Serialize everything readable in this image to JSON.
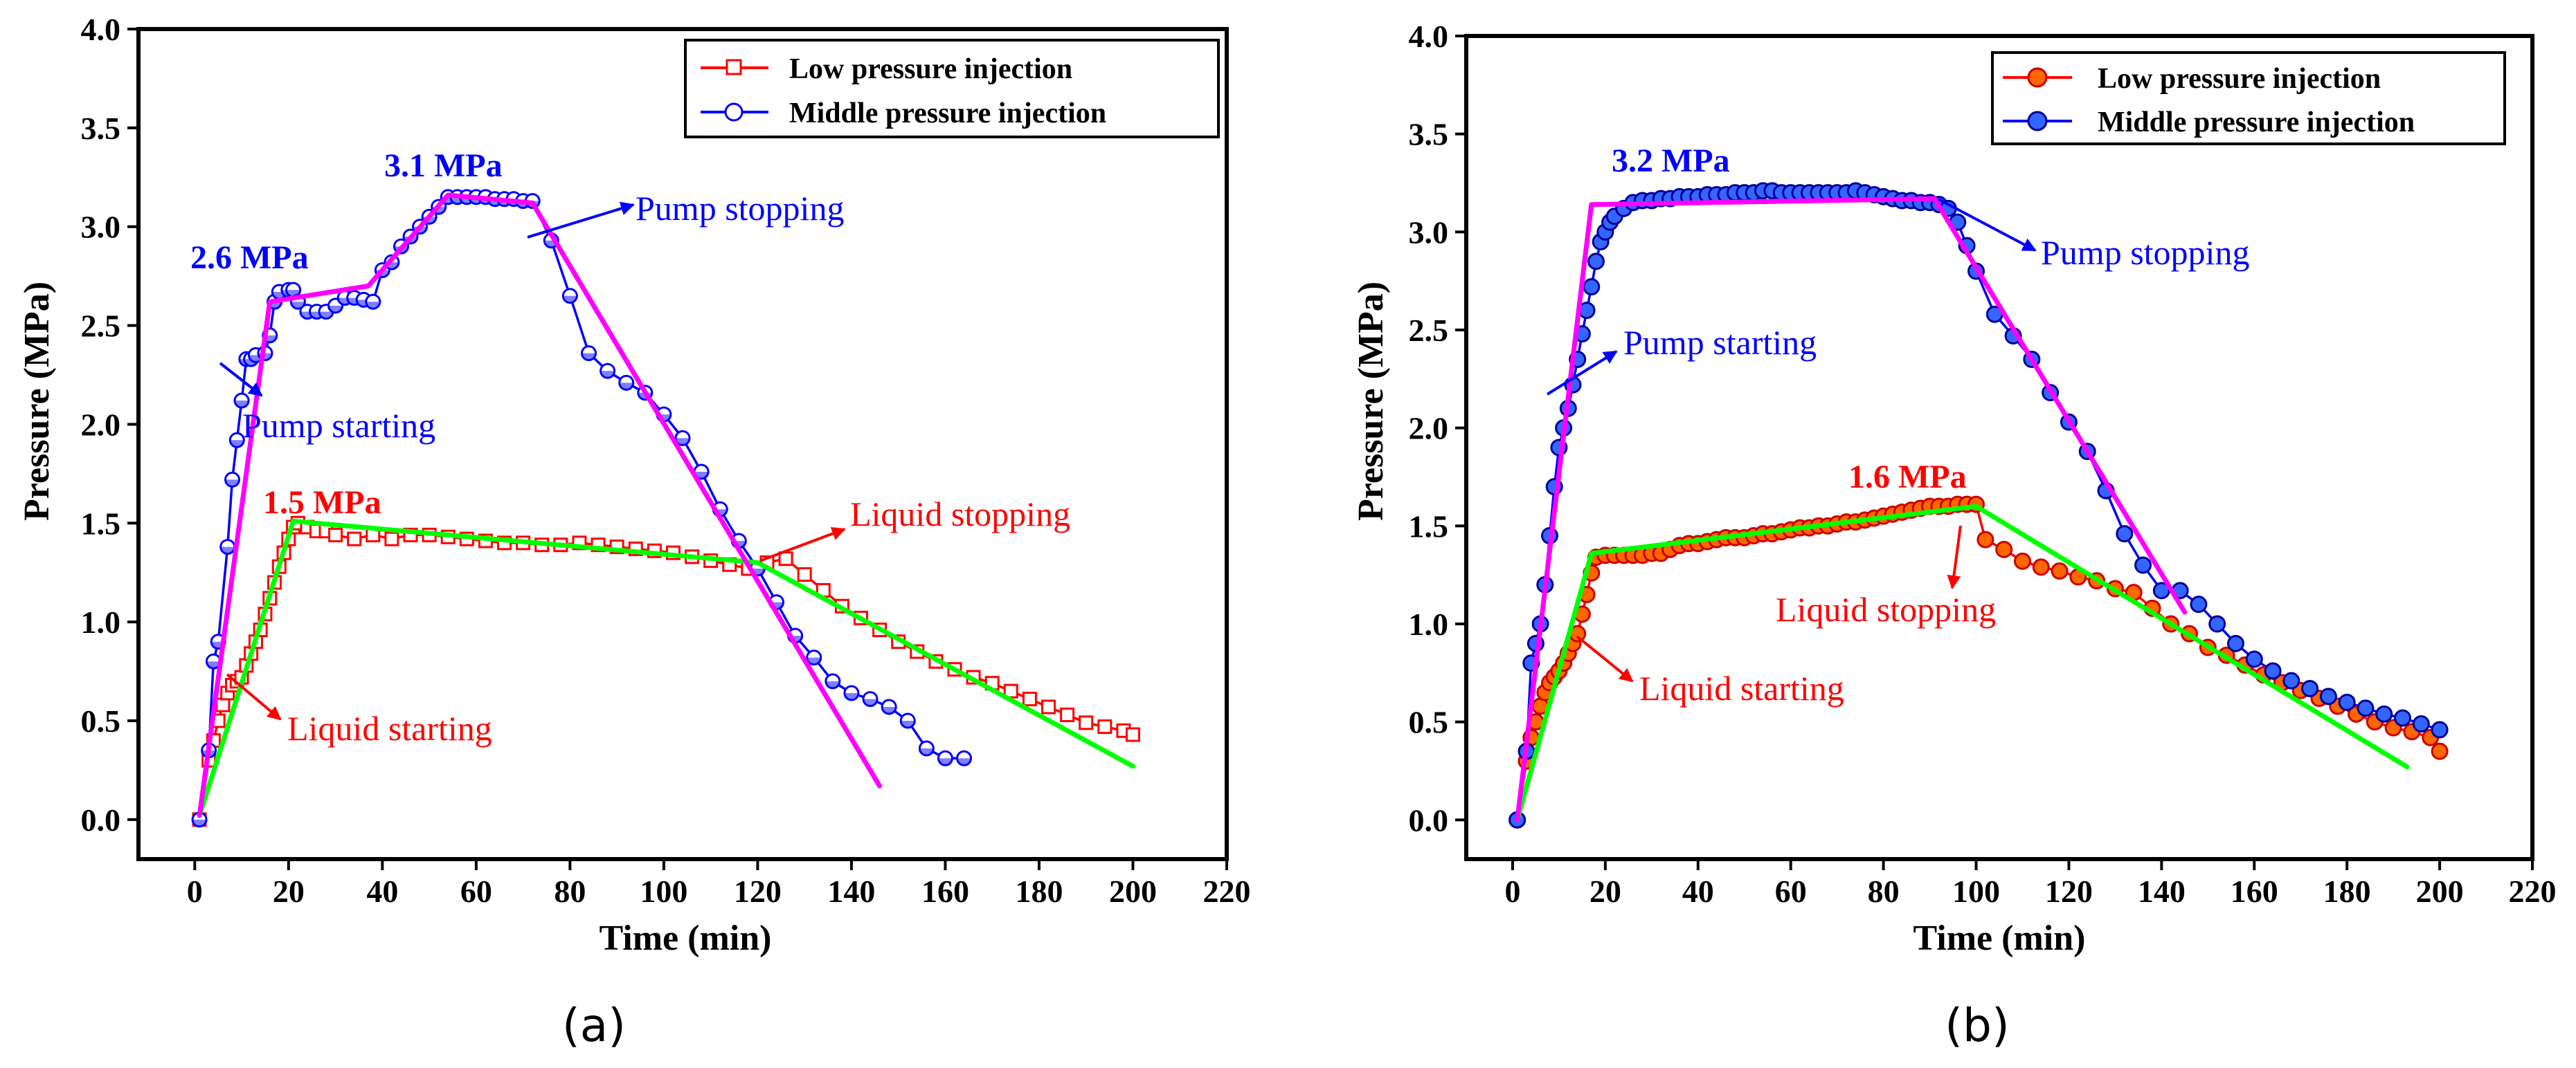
{
  "chart_data": [
    {
      "id": "a",
      "type": "line",
      "caption": "(a)",
      "xlabel": "Time (min)",
      "ylabel": "Pressure (MPa)",
      "xlim": [
        -12,
        220
      ],
      "ylim": [
        -0.2,
        4.0
      ],
      "xticks": [
        0,
        20,
        40,
        60,
        80,
        100,
        120,
        140,
        160,
        180,
        200,
        220
      ],
      "yticks": [
        0.0,
        0.5,
        1.0,
        1.5,
        2.0,
        2.5,
        3.0,
        3.5,
        4.0
      ],
      "xtick_labels": [
        "0",
        "20",
        "40",
        "60",
        "80",
        "100",
        "120",
        "140",
        "160",
        "180",
        "200",
        "220"
      ],
      "ytick_labels": [
        "0.0",
        "0.5",
        "1.0",
        "1.5",
        "2.0",
        "2.5",
        "3.0",
        "3.5",
        "4.0"
      ],
      "legend": {
        "position": "top-right",
        "entries": [
          "Low pressure injection",
          "Middle pressure injection"
        ]
      },
      "series": [
        {
          "name": "Low pressure injection",
          "color": "#ff0000",
          "marker": "square",
          "x": [
            1,
            3,
            4,
            5,
            6,
            7,
            8,
            9,
            10,
            11,
            12,
            13,
            14,
            15,
            16,
            17,
            18,
            19,
            20,
            21,
            22,
            24,
            26,
            28,
            30,
            34,
            38,
            42,
            46,
            50,
            54,
            58,
            62,
            66,
            70,
            74,
            78,
            82,
            86,
            90,
            94,
            98,
            102,
            106,
            110,
            114,
            118,
            122,
            126,
            130,
            134,
            138,
            142,
            146,
            150,
            154,
            158,
            162,
            166,
            170,
            174,
            178,
            182,
            186,
            190,
            194,
            198,
            200
          ],
          "y": [
            0.0,
            0.3,
            0.4,
            0.5,
            0.58,
            0.64,
            0.68,
            0.7,
            0.72,
            0.78,
            0.84,
            0.9,
            0.96,
            1.04,
            1.12,
            1.2,
            1.28,
            1.35,
            1.42,
            1.48,
            1.5,
            1.48,
            1.46,
            1.46,
            1.44,
            1.42,
            1.44,
            1.42,
            1.44,
            1.44,
            1.43,
            1.42,
            1.41,
            1.4,
            1.4,
            1.39,
            1.39,
            1.4,
            1.39,
            1.38,
            1.37,
            1.36,
            1.35,
            1.33,
            1.31,
            1.29,
            1.27,
            1.3,
            1.32,
            1.24,
            1.16,
            1.08,
            1.02,
            0.96,
            0.9,
            0.85,
            0.8,
            0.76,
            0.72,
            0.69,
            0.65,
            0.61,
            0.57,
            0.53,
            0.49,
            0.47,
            0.45,
            0.43
          ]
        },
        {
          "name": "Middle pressure injection",
          "color": "#0000ff",
          "marker": "circle",
          "x": [
            1,
            3,
            4,
            5,
            7,
            8,
            9,
            10,
            11,
            12,
            13,
            15,
            16,
            17,
            18,
            20,
            21,
            22,
            24,
            26,
            28,
            30,
            32,
            34,
            36,
            38,
            40,
            42,
            44,
            46,
            48,
            50,
            52,
            54,
            56,
            58,
            60,
            62,
            64,
            66,
            68,
            70,
            72,
            76,
            80,
            84,
            88,
            92,
            96,
            100,
            104,
            108,
            112,
            116,
            120,
            124,
            128,
            132,
            136,
            140,
            144,
            148,
            152,
            156,
            160,
            164
          ],
          "y": [
            0.0,
            0.35,
            0.8,
            0.9,
            1.38,
            1.72,
            1.92,
            2.12,
            2.33,
            2.33,
            2.35,
            2.36,
            2.45,
            2.62,
            2.67,
            2.68,
            2.68,
            2.62,
            2.57,
            2.57,
            2.57,
            2.6,
            2.64,
            2.64,
            2.63,
            2.62,
            2.78,
            2.82,
            2.9,
            2.95,
            3.0,
            3.05,
            3.1,
            3.15,
            3.15,
            3.15,
            3.15,
            3.15,
            3.14,
            3.14,
            3.14,
            3.13,
            3.13,
            2.93,
            2.65,
            2.36,
            2.27,
            2.21,
            2.16,
            2.05,
            1.93,
            1.76,
            1.57,
            1.41,
            1.27,
            1.1,
            0.93,
            0.82,
            0.7,
            0.64,
            0.61,
            0.57,
            0.5,
            0.36,
            0.31,
            0.31
          ]
        },
        {
          "name": "Low pressure fit",
          "color": "#00ff00",
          "x": [
            1,
            21,
            120,
            200
          ],
          "y": [
            0.02,
            1.51,
            1.3,
            0.27
          ]
        },
        {
          "name": "Middle pressure fit",
          "color": "#ff00ff",
          "x": [
            1,
            16,
            37,
            54,
            72,
            146
          ],
          "y": [
            0.02,
            2.62,
            2.7,
            3.16,
            3.12,
            0.17
          ]
        }
      ],
      "annotations": {
        "peak_low": "1.5 MPa",
        "peak_mid_1": "2.6 MPa",
        "peak_mid_2": "3.1 MPa",
        "pump_stopping": "Pump stopping",
        "pump_starting": "Pump starting",
        "liquid_stopping": "Liquid stopping",
        "liquid_starting": "Liquid starting"
      }
    },
    {
      "id": "b",
      "type": "line",
      "caption": "(b)",
      "xlabel": "Time (min)",
      "ylabel": "Pressure (MPa)",
      "xlim": [
        -10,
        220
      ],
      "ylim": [
        -0.2,
        4.0
      ],
      "xticks": [
        0,
        20,
        40,
        60,
        80,
        100,
        120,
        140,
        160,
        180,
        200,
        220
      ],
      "yticks": [
        0.0,
        0.5,
        1.0,
        1.5,
        2.0,
        2.5,
        3.0,
        3.5,
        4.0
      ],
      "xtick_labels": [
        "0",
        "20",
        "40",
        "60",
        "80",
        "100",
        "120",
        "140",
        "160",
        "180",
        "200",
        "220"
      ],
      "ytick_labels": [
        "0.0",
        "0.5",
        "1.0",
        "1.5",
        "2.0",
        "2.5",
        "3.0",
        "3.5",
        "4.0"
      ],
      "legend": {
        "position": "top-right",
        "entries": [
          "Low pressure injection",
          "Middle pressure injection"
        ]
      },
      "series": [
        {
          "name": "Low pressure injection",
          "color": "#ff0000",
          "marker": "circle-filled",
          "x": [
            1,
            3,
            4,
            5,
            6,
            7,
            8,
            9,
            10,
            11,
            12,
            13,
            14,
            15,
            16,
            17,
            18,
            20,
            22,
            24,
            26,
            28,
            30,
            32,
            34,
            36,
            38,
            40,
            42,
            44,
            46,
            48,
            50,
            52,
            54,
            56,
            58,
            60,
            62,
            64,
            66,
            68,
            70,
            72,
            74,
            76,
            78,
            80,
            82,
            84,
            86,
            88,
            90,
            92,
            94,
            96,
            98,
            100,
            102,
            106,
            110,
            114,
            118,
            122,
            126,
            130,
            134,
            138,
            142,
            146,
            150,
            154,
            158,
            162,
            166,
            170,
            174,
            178,
            182,
            186,
            190,
            194,
            198,
            200
          ],
          "y": [
            0.0,
            0.3,
            0.42,
            0.5,
            0.58,
            0.65,
            0.7,
            0.73,
            0.76,
            0.8,
            0.85,
            0.9,
            0.95,
            1.05,
            1.15,
            1.26,
            1.34,
            1.35,
            1.35,
            1.35,
            1.35,
            1.35,
            1.36,
            1.36,
            1.38,
            1.4,
            1.41,
            1.41,
            1.42,
            1.43,
            1.44,
            1.44,
            1.44,
            1.45,
            1.46,
            1.46,
            1.47,
            1.48,
            1.49,
            1.49,
            1.5,
            1.5,
            1.51,
            1.52,
            1.52,
            1.53,
            1.54,
            1.55,
            1.56,
            1.57,
            1.58,
            1.59,
            1.6,
            1.6,
            1.6,
            1.61,
            1.61,
            1.61,
            1.43,
            1.38,
            1.32,
            1.29,
            1.27,
            1.24,
            1.22,
            1.18,
            1.16,
            1.08,
            1.0,
            0.95,
            0.88,
            0.84,
            0.79,
            0.74,
            0.7,
            0.66,
            0.62,
            0.58,
            0.54,
            0.5,
            0.47,
            0.45,
            0.42,
            0.35
          ]
        },
        {
          "name": "Middle pressure injection",
          "color": "#0000ff",
          "marker": "circle-filled",
          "x": [
            1,
            3,
            4,
            5,
            6,
            7,
            8,
            9,
            10,
            11,
            12,
            13,
            14,
            15,
            16,
            17,
            18,
            19,
            20,
            21,
            22,
            24,
            26,
            28,
            30,
            32,
            34,
            36,
            38,
            40,
            42,
            44,
            46,
            48,
            50,
            52,
            54,
            56,
            58,
            60,
            62,
            64,
            66,
            68,
            70,
            72,
            74,
            76,
            78,
            80,
            82,
            84,
            86,
            88,
            90,
            92,
            94,
            96,
            98,
            100,
            104,
            108,
            112,
            116,
            120,
            124,
            128,
            132,
            136,
            140,
            144,
            148,
            152,
            156,
            160,
            164,
            168,
            172,
            176,
            180,
            184,
            188,
            192,
            196,
            200
          ],
          "y": [
            0.0,
            0.35,
            0.8,
            0.9,
            1.0,
            1.2,
            1.45,
            1.7,
            1.9,
            2.0,
            2.1,
            2.22,
            2.35,
            2.48,
            2.6,
            2.72,
            2.85,
            2.95,
            3.0,
            3.05,
            3.08,
            3.12,
            3.15,
            3.16,
            3.16,
            3.17,
            3.17,
            3.18,
            3.18,
            3.18,
            3.19,
            3.19,
            3.19,
            3.2,
            3.2,
            3.2,
            3.21,
            3.21,
            3.2,
            3.2,
            3.2,
            3.2,
            3.2,
            3.2,
            3.2,
            3.2,
            3.21,
            3.2,
            3.19,
            3.18,
            3.17,
            3.16,
            3.16,
            3.15,
            3.15,
            3.14,
            3.12,
            3.05,
            2.93,
            2.8,
            2.58,
            2.47,
            2.35,
            2.18,
            2.03,
            1.88,
            1.68,
            1.46,
            1.3,
            1.17,
            1.17,
            1.1,
            1.0,
            0.9,
            0.82,
            0.76,
            0.71,
            0.67,
            0.63,
            0.6,
            0.57,
            0.54,
            0.52,
            0.49,
            0.46
          ]
        },
        {
          "name": "Low pressure fit",
          "color": "#00ff00",
          "x": [
            1,
            17,
            100,
            193
          ],
          "y": [
            0.0,
            1.36,
            1.6,
            0.27
          ]
        },
        {
          "name": "Middle pressure fit",
          "color": "#ff00ff",
          "x": [
            1,
            17,
            91,
            145
          ],
          "y": [
            0.0,
            3.14,
            3.17,
            1.06
          ]
        }
      ],
      "annotations": {
        "peak_low": "1.6 MPa",
        "peak_mid": "3.2 MPa",
        "pump_stopping": "Pump stopping",
        "pump_starting": "Pump starting",
        "liquid_stopping": "Liquid stopping",
        "liquid_starting": "Liquid starting"
      }
    }
  ]
}
